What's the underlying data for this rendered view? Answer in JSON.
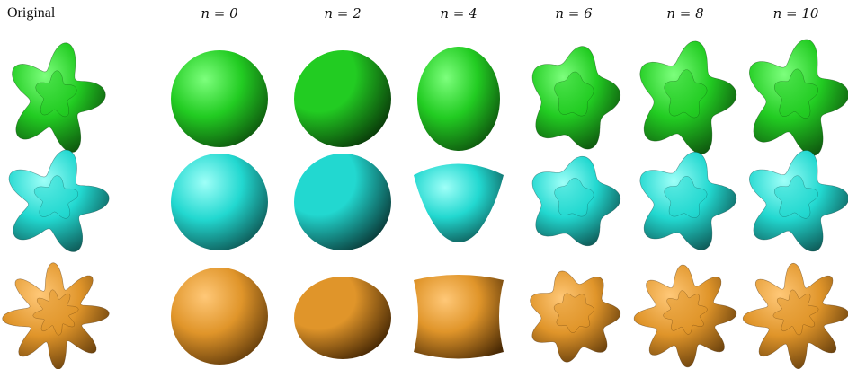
{
  "header": {
    "original_label": "Original",
    "columns": [
      "n = 0",
      "n = 2",
      "n = 4",
      "n = 6",
      "n = 8",
      "n = 10"
    ]
  },
  "rows": [
    {
      "key": "green",
      "color": "#22cc22",
      "dark": "#0a3d0a",
      "light": "#7dff7d"
    },
    {
      "key": "cyan",
      "color": "#22d8d0",
      "dark": "#0a3f3d",
      "light": "#9ffff8"
    },
    {
      "key": "orange",
      "color": "#e0952a",
      "dark": "#4a2a05",
      "light": "#ffc878"
    }
  ]
}
